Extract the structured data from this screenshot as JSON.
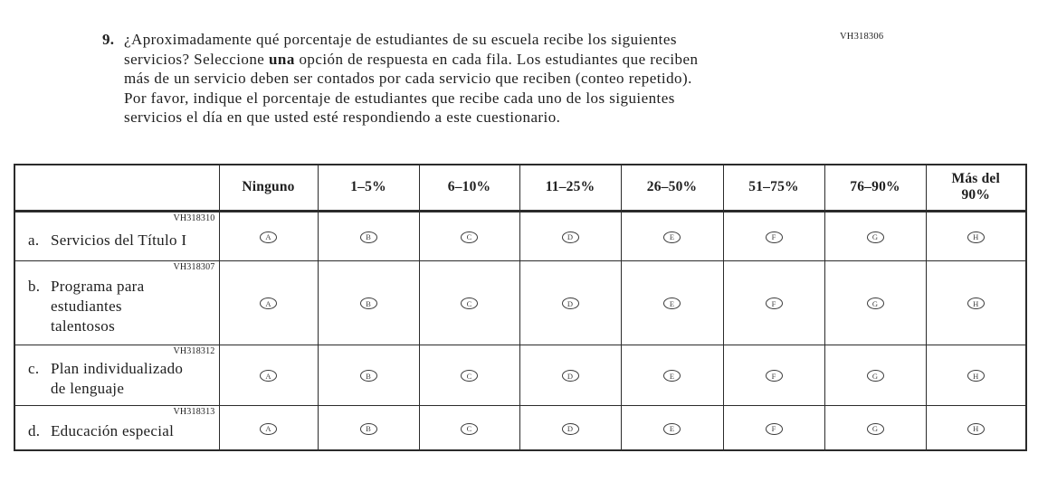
{
  "colors": {
    "text": "#1e1e1e",
    "border": "#2b2b2b",
    "bubble": "#3d3d3d",
    "bg": "#ffffff"
  },
  "question": {
    "number": "9.",
    "code": "VH318306",
    "text_p1": "¿Aproximadamente qué porcentaje de estudiantes de su escuela recibe los siguientes\nservicios? Seleccione ",
    "text_bold": "una",
    "text_p2": " opción de respuesta en cada fila. Los estudiantes que reciben\nmás de un servicio deben ser contados por cada servicio que reciben (conteo repetido).\nPor favor, indique el porcentaje de estudiantes que recibe cada uno de los siguientes\nservicios el día en que usted esté respondiendo a este cuestionario."
  },
  "table": {
    "column_headers": [
      "Ninguno",
      "1–5%",
      "6–10%",
      "11–25%",
      "26–50%",
      "51–75%",
      "76–90%",
      "Más del\n90%"
    ],
    "option_letters": [
      "A",
      "B",
      "C",
      "D",
      "E",
      "F",
      "G",
      "H"
    ],
    "rows": [
      {
        "code": "VH318310",
        "prefix": "a.",
        "label": "Servicios del Título I"
      },
      {
        "code": "VH318307",
        "prefix": "b.",
        "label": "Programa para\nestudiantes\ntalentosos"
      },
      {
        "code": "VH318312",
        "prefix": "c.",
        "label": "Plan individualizado\nde lenguaje"
      },
      {
        "code": "VH318313",
        "prefix": "d.",
        "label": "Educación especial"
      }
    ]
  }
}
